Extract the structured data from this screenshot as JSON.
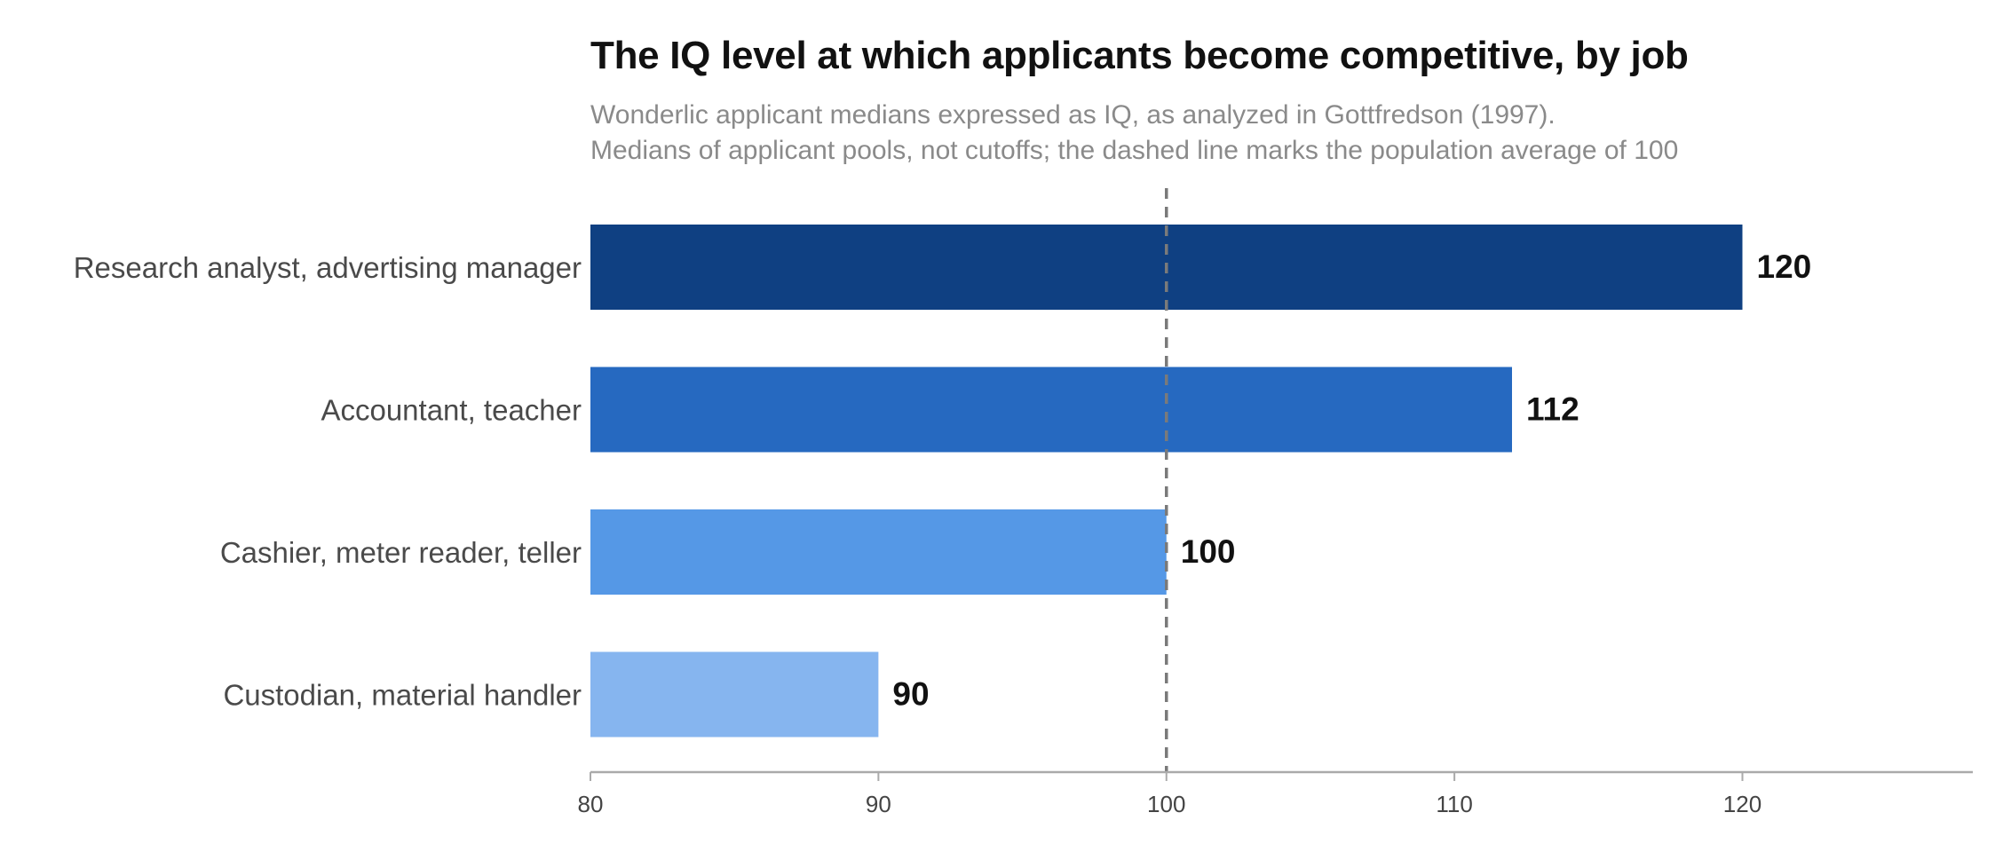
{
  "chart_data": {
    "type": "bar",
    "orientation": "horizontal",
    "title": "The IQ level at which applicants become competitive, by job",
    "subtitle": [
      "Wonderlic applicant medians expressed as IQ, as analyzed in Gottfredson (1997).",
      "Medians of applicant pools, not cutoffs; the dashed line marks the population average of 100"
    ],
    "categories": [
      "Research analyst, advertising manager",
      "Accountant, teacher",
      "Cashier, meter reader, teller",
      "Custodian, material handler"
    ],
    "values": [
      120,
      112,
      100,
      90
    ],
    "value_labels": [
      "120",
      "112",
      "100",
      "90"
    ],
    "colors": [
      "#0f4082",
      "#2669c0",
      "#5598e6",
      "#86b5ef"
    ],
    "xlim": [
      80,
      128
    ],
    "xticks": [
      80,
      90,
      100,
      110,
      120
    ],
    "xtick_labels": [
      "80",
      "90",
      "100",
      "110",
      "120"
    ],
    "reference_line": {
      "x": 100,
      "style": "dashed",
      "color": "#7a7a7a"
    },
    "xlabel": "",
    "ylabel": "",
    "grid": false,
    "legend": "none"
  }
}
